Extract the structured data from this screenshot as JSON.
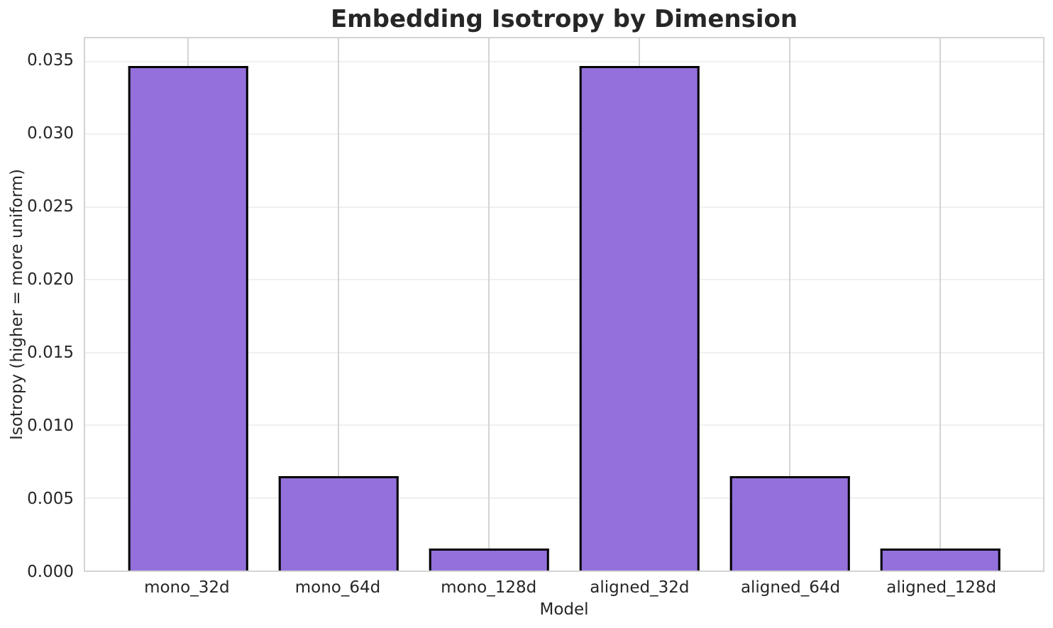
{
  "chart_data": {
    "type": "bar",
    "title": "Embedding Isotropy by Dimension",
    "xlabel": "Model",
    "ylabel": "Isotropy (higher = more uniform)",
    "categories": [
      "mono_32d",
      "mono_64d",
      "mono_128d",
      "aligned_32d",
      "aligned_64d",
      "aligned_128d"
    ],
    "values": [
      0.0347,
      0.0065,
      0.0015,
      0.0347,
      0.0065,
      0.0015
    ],
    "yticks": [
      0.0,
      0.005,
      0.01,
      0.015,
      0.02,
      0.025,
      0.03,
      0.035
    ],
    "ytick_labels": [
      "0.000",
      "0.005",
      "0.010",
      "0.015",
      "0.020",
      "0.025",
      "0.030",
      "0.035"
    ],
    "ylim": [
      0,
      0.0366
    ],
    "grid": true,
    "legend": false,
    "bar_color": "#9370DB",
    "bar_edge_color": "#000000",
    "vgrid_color": "#d4d4d4",
    "hgrid_color": "#f0f0f0"
  }
}
